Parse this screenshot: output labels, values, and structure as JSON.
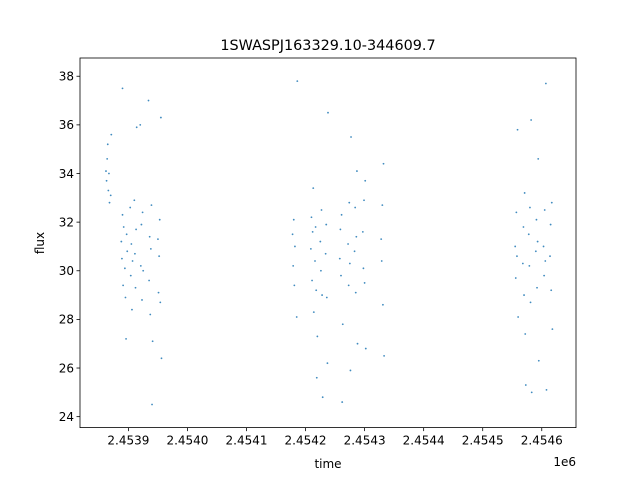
{
  "chart_data": {
    "type": "scatter",
    "title": "1SWASPJ163329.10-344609.7",
    "xlabel": "time",
    "ylabel": "flux",
    "x_offset_label": "1e6",
    "xlim": [
      2453818,
      2454658
    ],
    "ylim": [
      23.55,
      38.75
    ],
    "x_ticks": [
      {
        "value": 2453900,
        "label": "2.4539"
      },
      {
        "value": 2454000,
        "label": "2.4540"
      },
      {
        "value": 2454100,
        "label": "2.4541"
      },
      {
        "value": 2454200,
        "label": "2.4542"
      },
      {
        "value": 2454300,
        "label": "2.4543"
      },
      {
        "value": 2454400,
        "label": "2.4544"
      },
      {
        "value": 2454500,
        "label": "2.4545"
      },
      {
        "value": 2454600,
        "label": "2.4546"
      }
    ],
    "y_ticks": [
      {
        "value": 24,
        "label": "24"
      },
      {
        "value": 26,
        "label": "26"
      },
      {
        "value": 28,
        "label": "28"
      },
      {
        "value": 30,
        "label": "30"
      },
      {
        "value": 32,
        "label": "32"
      },
      {
        "value": 34,
        "label": "34"
      },
      {
        "value": 36,
        "label": "36"
      },
      {
        "value": 38,
        "label": "38"
      }
    ],
    "grid": false,
    "marker_color": "#1f77b4",
    "series": [
      {
        "values": [
          [
            2453862,
            34.1
          ],
          [
            2453863,
            33.7
          ],
          [
            2453864,
            34.6
          ],
          [
            2453865,
            35.2
          ],
          [
            2453866,
            33.3
          ],
          [
            2453867,
            34.0
          ],
          [
            2453870,
            33.1
          ],
          [
            2453871,
            35.6
          ],
          [
            2453868,
            32.8
          ],
          [
            2453888,
            31.2
          ],
          [
            2453889,
            30.5
          ],
          [
            2453890,
            32.3
          ],
          [
            2453891,
            29.4
          ],
          [
            2453892,
            31.8
          ],
          [
            2453894,
            30.1
          ],
          [
            2453895,
            28.9
          ],
          [
            2453896,
            27.2
          ],
          [
            2453897,
            31.5
          ],
          [
            2453898,
            30.8
          ],
          [
            2453903,
            32.6
          ],
          [
            2453904,
            29.8
          ],
          [
            2453905,
            31.1
          ],
          [
            2453906,
            28.4
          ],
          [
            2453907,
            30.4
          ],
          [
            2453910,
            32.9
          ],
          [
            2453911,
            30.7
          ],
          [
            2453912,
            29.3
          ],
          [
            2453913,
            31.7
          ],
          [
            2453914,
            35.9
          ],
          [
            2453921,
            30.2
          ],
          [
            2453922,
            31.9
          ],
          [
            2453923,
            28.8
          ],
          [
            2453924,
            32.4
          ],
          [
            2453925,
            30.0
          ],
          [
            2453935,
            29.6
          ],
          [
            2453936,
            31.4
          ],
          [
            2453937,
            28.2
          ],
          [
            2453938,
            30.9
          ],
          [
            2453939,
            32.7
          ],
          [
            2453940,
            24.5
          ],
          [
            2453941,
            27.1
          ],
          [
            2453950,
            31.3
          ],
          [
            2453951,
            29.1
          ],
          [
            2453952,
            30.6
          ],
          [
            2453953,
            32.1
          ],
          [
            2453954,
            28.7
          ],
          [
            2453955,
            36.3
          ],
          [
            2453956,
            26.4
          ],
          [
            2453890,
            37.5
          ],
          [
            2453934,
            37.0
          ],
          [
            2453920,
            36.0
          ],
          [
            2454178,
            31.5
          ],
          [
            2454179,
            30.2
          ],
          [
            2454180,
            32.1
          ],
          [
            2454181,
            29.4
          ],
          [
            2454182,
            31.0
          ],
          [
            2454186,
            37.8
          ],
          [
            2454185,
            28.1
          ],
          [
            2454209,
            30.9
          ],
          [
            2454210,
            32.2
          ],
          [
            2454211,
            29.6
          ],
          [
            2454212,
            31.6
          ],
          [
            2454213,
            33.4
          ],
          [
            2454214,
            28.3
          ],
          [
            2454216,
            30.4
          ],
          [
            2454217,
            31.8
          ],
          [
            2454218,
            29.2
          ],
          [
            2454219,
            25.6
          ],
          [
            2454220,
            27.3
          ],
          [
            2454225,
            31.2
          ],
          [
            2454226,
            30.0
          ],
          [
            2454227,
            32.5
          ],
          [
            2454228,
            29.0
          ],
          [
            2454229,
            24.8
          ],
          [
            2454234,
            30.7
          ],
          [
            2454235,
            31.9
          ],
          [
            2454236,
            28.9
          ],
          [
            2454237,
            26.2
          ],
          [
            2454238,
            36.5
          ],
          [
            2454258,
            30.5
          ],
          [
            2454259,
            31.7
          ],
          [
            2454260,
            29.8
          ],
          [
            2454261,
            32.3
          ],
          [
            2454262,
            24.6
          ],
          [
            2454263,
            27.8
          ],
          [
            2454272,
            31.1
          ],
          [
            2454273,
            29.4
          ],
          [
            2454274,
            32.8
          ],
          [
            2454275,
            30.3
          ],
          [
            2454276,
            25.9
          ],
          [
            2454277,
            35.5
          ],
          [
            2454283,
            30.8
          ],
          [
            2454284,
            32.6
          ],
          [
            2454285,
            29.1
          ],
          [
            2454286,
            31.4
          ],
          [
            2454287,
            34.1
          ],
          [
            2454288,
            27.0
          ],
          [
            2454297,
            31.6
          ],
          [
            2454298,
            30.1
          ],
          [
            2454299,
            32.9
          ],
          [
            2454300,
            29.5
          ],
          [
            2454301,
            33.7
          ],
          [
            2454302,
            26.8
          ],
          [
            2454328,
            31.3
          ],
          [
            2454329,
            30.4
          ],
          [
            2454330,
            32.7
          ],
          [
            2454331,
            28.6
          ],
          [
            2454332,
            34.4
          ],
          [
            2454333,
            26.5
          ],
          [
            2454555,
            31.0
          ],
          [
            2454556,
            29.7
          ],
          [
            2454557,
            32.4
          ],
          [
            2454558,
            30.6
          ],
          [
            2454559,
            35.8
          ],
          [
            2454560,
            28.1
          ],
          [
            2454568,
            30.3
          ],
          [
            2454569,
            31.8
          ],
          [
            2454570,
            29.0
          ],
          [
            2454571,
            33.2
          ],
          [
            2454572,
            27.4
          ],
          [
            2454573,
            25.3
          ],
          [
            2454578,
            31.5
          ],
          [
            2454579,
            30.2
          ],
          [
            2454580,
            32.6
          ],
          [
            2454581,
            28.7
          ],
          [
            2454582,
            36.2
          ],
          [
            2454583,
            25.0
          ],
          [
            2454590,
            30.8
          ],
          [
            2454591,
            32.1
          ],
          [
            2454592,
            29.3
          ],
          [
            2454593,
            31.2
          ],
          [
            2454594,
            34.6
          ],
          [
            2454595,
            26.3
          ],
          [
            2454603,
            31.0
          ],
          [
            2454604,
            29.8
          ],
          [
            2454605,
            32.5
          ],
          [
            2454606,
            30.4
          ],
          [
            2454607,
            37.7
          ],
          [
            2454608,
            25.1
          ],
          [
            2454614,
            30.6
          ],
          [
            2454615,
            31.9
          ],
          [
            2454616,
            29.2
          ],
          [
            2454617,
            32.8
          ],
          [
            2454618,
            27.6
          ]
        ]
      }
    ]
  }
}
